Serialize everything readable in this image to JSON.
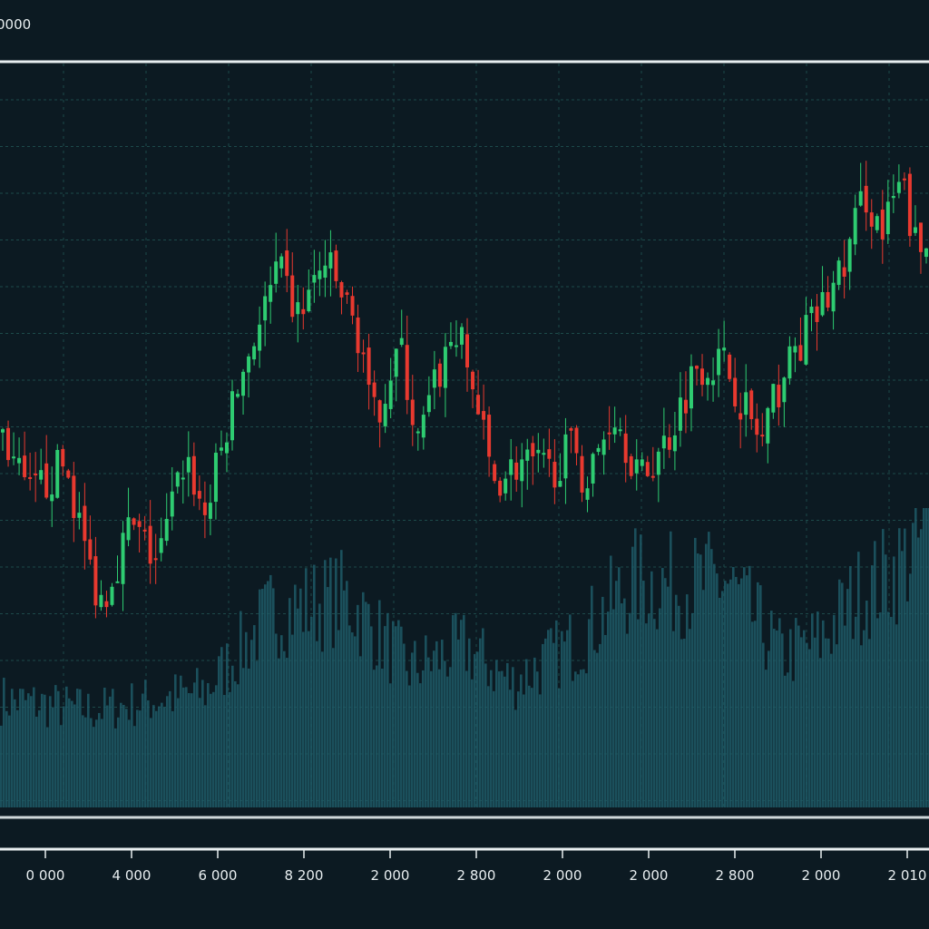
{
  "chart_data": {
    "type": "candlestick",
    "title": "0000",
    "xlabel": "",
    "ylabel": "",
    "grid": true,
    "x_tick_labels": [
      "0 000",
      "4 000",
      "6 000",
      "8 200",
      "2 000",
      "2 800",
      "2 000",
      "2 000",
      "2 800",
      "2 000",
      "2 010"
    ],
    "price_range": [
      0,
      100
    ],
    "price_keypoints": {
      "t": [
        0,
        3,
        7,
        10,
        11,
        14,
        17,
        20,
        22,
        25,
        27,
        30,
        32,
        35,
        37,
        39,
        40,
        43,
        45,
        47,
        49,
        51,
        53,
        56,
        59,
        62,
        63,
        66,
        69,
        72,
        75,
        78,
        82,
        84,
        86,
        89,
        91,
        93,
        95,
        97,
        99,
        100
      ],
      "close": [
        51.2,
        41.5,
        46.3,
        30.5,
        28.0,
        37.8,
        32.9,
        47.6,
        39.0,
        53.7,
        62.2,
        72.0,
        65.9,
        73.2,
        68.3,
        62.2,
        51.2,
        62.2,
        48.8,
        57.3,
        64.6,
        56.1,
        43.9,
        46.3,
        45.1,
        48.8,
        42.7,
        53.7,
        43.9,
        50.0,
        59.8,
        59.8,
        48.8,
        57.3,
        62.2,
        68.3,
        73.2,
        82.9,
        76.8,
        84.1,
        73.2,
        76.8
      ]
    },
    "volume_range": [
      0,
      100
    ],
    "volume_keypoints": {
      "t": [
        0,
        10,
        22,
        29,
        37,
        44,
        50,
        55,
        62,
        68,
        73,
        78,
        84,
        88,
        92,
        96,
        100
      ],
      "volume": [
        39,
        35,
        42,
        70,
        76,
        50,
        58,
        45,
        60,
        82,
        80,
        82,
        55,
        60,
        76,
        85,
        100
      ]
    },
    "colors": {
      "up": "#2ecc71",
      "down": "#e8392f",
      "volume": "#1f5a66",
      "grid": "#1d4a4a",
      "axis": "#e8eef0"
    }
  }
}
